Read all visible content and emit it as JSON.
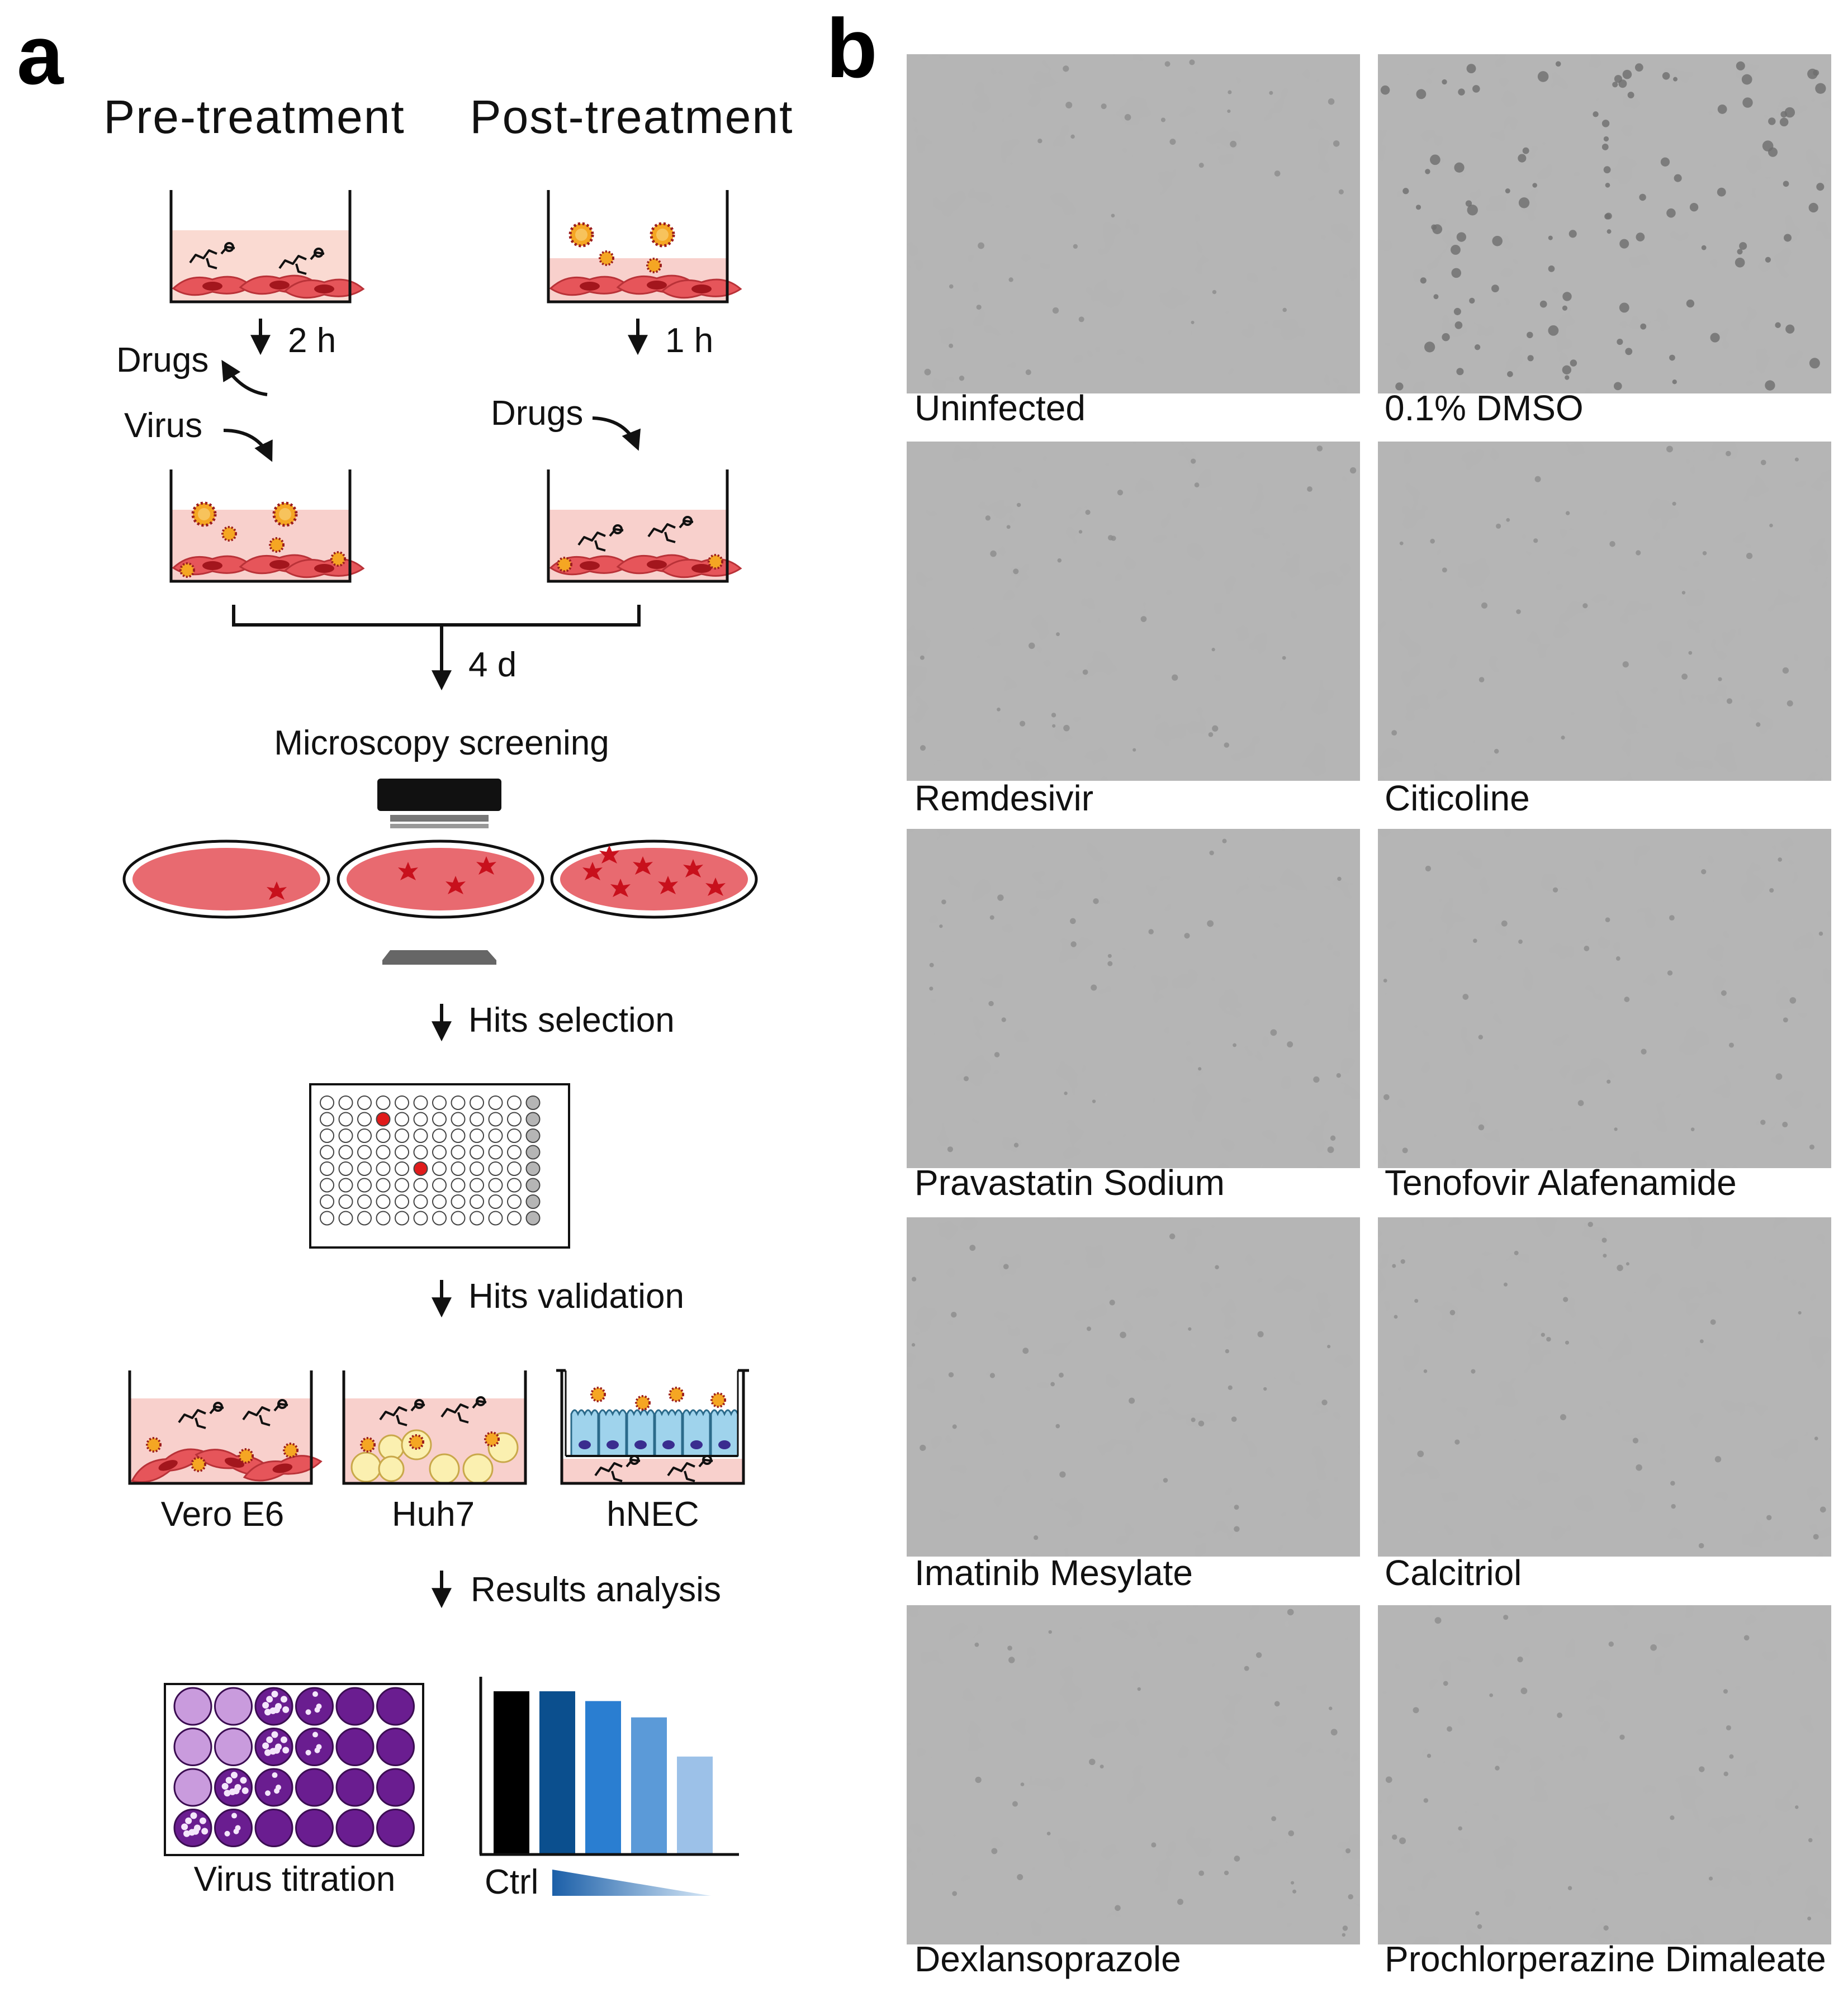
{
  "panel_a": {
    "letter": "a",
    "pre_treatment": "Pre-treatment",
    "post_treatment": "Post-treatment",
    "time_pre": "2 h",
    "time_post": "1 h",
    "drugs_removed": "Drugs",
    "virus_added": "Virus",
    "drugs_added": "Drugs",
    "incubation": "4 d",
    "microscopy": "Microscopy screening",
    "hits_selection": "Hits selection",
    "hits_validation": "Hits validation",
    "cell_lines": [
      "Vero E6",
      "Huh7",
      "hNEC"
    ],
    "results_analysis": "Results analysis",
    "virus_titration": "Virus titration",
    "ctrl": "Ctrl",
    "bar_chart": {
      "relative_values": [
        1.0,
        1.0,
        0.94,
        0.84,
        0.6
      ],
      "colors": [
        "#000000",
        "#0b4f8e",
        "#2a7ed1",
        "#5b9ad8",
        "#9cc1e8"
      ]
    }
  },
  "panel_b": {
    "letter": "b",
    "images": [
      {
        "label": "Uninfected",
        "style": "clear"
      },
      {
        "label": "0.1% DMSO",
        "style": "infected"
      },
      {
        "label": "Remdesivir",
        "style": "clear"
      },
      {
        "label": "Citicoline",
        "style": "clear"
      },
      {
        "label": "Pravastatin Sodium",
        "style": "clear"
      },
      {
        "label": "Tenofovir Alafenamide",
        "style": "clear"
      },
      {
        "label": "Imatinib Mesylate",
        "style": "clear"
      },
      {
        "label": "Calcitriol",
        "style": "clear"
      },
      {
        "label": "Dexlansoprazole",
        "style": "clear"
      },
      {
        "label": "Prochlorperazine Dimaleate",
        "style": "clear"
      }
    ]
  },
  "colors": {
    "medium": "#f8d0cc",
    "cell": "#e6555a",
    "virus": "#f5a623",
    "spike": "#9b1d1d",
    "plate_light": "#c99bdd",
    "plate_dark": "#6a1d90",
    "hnec": "#9fd3ec"
  }
}
